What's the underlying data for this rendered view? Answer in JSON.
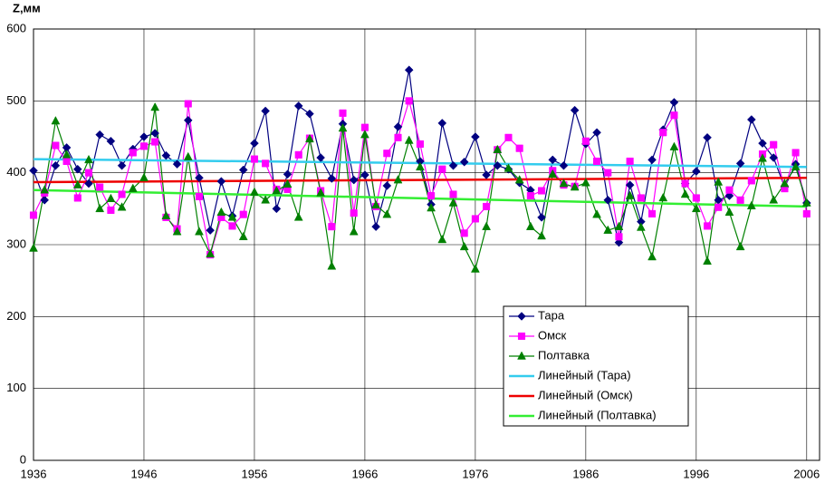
{
  "chart_data": {
    "type": "line",
    "y_label": "Z,мм",
    "x": [
      1936,
      1937,
      1938,
      1939,
      1940,
      1941,
      1942,
      1943,
      1944,
      1945,
      1946,
      1947,
      1948,
      1949,
      1950,
      1951,
      1952,
      1953,
      1954,
      1955,
      1956,
      1957,
      1958,
      1959,
      1960,
      1961,
      1962,
      1963,
      1964,
      1965,
      1966,
      1967,
      1968,
      1969,
      1970,
      1971,
      1972,
      1973,
      1974,
      1975,
      1976,
      1977,
      1978,
      1979,
      1980,
      1981,
      1982,
      1983,
      1984,
      1985,
      1986,
      1987,
      1988,
      1989,
      1990,
      1991,
      1992,
      1993,
      1994,
      1995,
      1996,
      1997,
      1998,
      1999,
      2000,
      2001,
      2002,
      2003,
      2004,
      2005,
      2006
    ],
    "xlim": [
      1936,
      2007
    ],
    "xticks": [
      1936,
      1946,
      1956,
      1966,
      1976,
      1986,
      1996,
      2006
    ],
    "ylim": [
      0,
      600
    ],
    "yticks": [
      0,
      100,
      200,
      300,
      400,
      500,
      600
    ],
    "grid": true,
    "series": [
      {
        "name": "Тара",
        "color": "#000080",
        "marker": "diamond",
        "values": [
          403,
          362,
          410,
          435,
          405,
          385,
          453,
          444,
          410,
          433,
          450,
          455,
          424,
          412,
          473,
          393,
          320,
          388,
          340,
          404,
          441,
          486,
          350,
          398,
          493,
          482,
          421,
          392,
          468,
          390,
          397,
          325,
          382,
          464,
          543,
          416,
          356,
          469,
          410,
          415,
          450,
          397,
          410,
          405,
          386,
          376,
          338,
          418,
          410,
          487,
          440,
          456,
          362,
          303,
          383,
          332,
          418,
          460,
          498,
          385,
          402,
          449,
          362,
          368,
          413,
          474,
          441,
          421,
          380,
          412,
          358
        ]
      },
      {
        "name": "Омск",
        "color": "#ff00ff",
        "marker": "square",
        "values": [
          341,
          372,
          438,
          416,
          365,
          400,
          380,
          348,
          370,
          428,
          437,
          443,
          338,
          322,
          496,
          367,
          286,
          338,
          326,
          342,
          419,
          413,
          377,
          377,
          425,
          448,
          375,
          325,
          483,
          344,
          463,
          353,
          427,
          449,
          500,
          440,
          368,
          405,
          370,
          316,
          336,
          353,
          432,
          449,
          434,
          368,
          375,
          403,
          383,
          381,
          444,
          416,
          400,
          311,
          416,
          365,
          343,
          456,
          480,
          385,
          365,
          326,
          352,
          376,
          362,
          389,
          426,
          439,
          378,
          428,
          343
        ]
      },
      {
        "name": "Полтавка",
        "color": "#008000",
        "marker": "triangle",
        "values": [
          295,
          376,
          472,
          425,
          383,
          418,
          350,
          364,
          352,
          378,
          393,
          491,
          340,
          318,
          422,
          318,
          287,
          345,
          338,
          311,
          373,
          362,
          375,
          384,
          338,
          447,
          372,
          270,
          462,
          318,
          453,
          355,
          342,
          390,
          445,
          408,
          351,
          307,
          358,
          297,
          266,
          325,
          432,
          406,
          390,
          325,
          312,
          398,
          385,
          380,
          386,
          342,
          320,
          325,
          368,
          324,
          283,
          365,
          436,
          370,
          350,
          277,
          387,
          345,
          297,
          354,
          420,
          362,
          385,
          408,
          358
        ]
      },
      {
        "name": "Линейный (Тара)",
        "color": "#33ccee",
        "x": [
          1936,
          2006
        ],
        "values": [
          419,
          408
        ]
      },
      {
        "name": "Линейный (Омск)",
        "color": "#ee0000",
        "x": [
          1936,
          2006
        ],
        "values": [
          387,
          393
        ]
      },
      {
        "name": "Линейный (Полтавка)",
        "color": "#33ee33",
        "x": [
          1936,
          2006
        ],
        "values": [
          376,
          353
        ]
      }
    ]
  }
}
